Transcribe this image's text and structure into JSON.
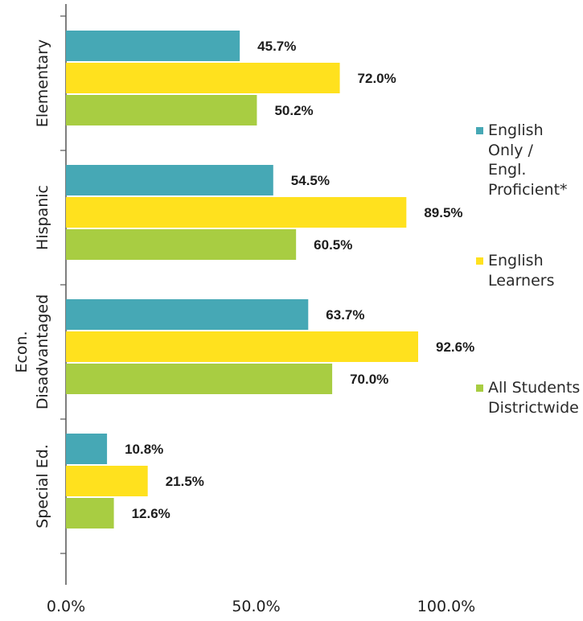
{
  "chart_data": {
    "type": "bar",
    "orientation": "horizontal",
    "categories": [
      "Elementary",
      "Hispanic",
      "Econ.\nDisadvantaged",
      "Special Ed."
    ],
    "series": [
      {
        "name": "English Only / Engl. Proficient*",
        "values": [
          45.7,
          54.5,
          63.7,
          10.8
        ],
        "labels": [
          "45.7%",
          "54.5%",
          "63.7%",
          "10.8%"
        ]
      },
      {
        "name": "English Learners",
        "values": [
          72.0,
          89.5,
          92.6,
          21.5
        ],
        "labels": [
          "72.0%",
          "89.5%",
          "92.6%",
          "21.5%"
        ]
      },
      {
        "name": "All Students Districtwide",
        "values": [
          50.2,
          60.5,
          70.0,
          12.6
        ],
        "labels": [
          "50.2%",
          "60.5%",
          "70.0%",
          "12.6%"
        ]
      }
    ],
    "xlim": [
      0,
      100
    ],
    "x_ticks": [
      0,
      50,
      100
    ],
    "x_tick_labels": [
      "0.0%",
      "50.0%",
      "100.0%"
    ],
    "grid": false,
    "legend_position": "right"
  },
  "legend": {
    "items": [
      {
        "label": "English\nOnly /\nEngl.\nProficient*",
        "color": "#46a8b5"
      },
      {
        "label": "English\nLearners",
        "color": "#ffe11e"
      },
      {
        "label": "All Students\nDistrictwide",
        "color": "#a8cd42"
      }
    ]
  },
  "colors": {
    "series": [
      "#46a8b5",
      "#ffe11e",
      "#a8cd42"
    ],
    "axis": "#555555"
  }
}
